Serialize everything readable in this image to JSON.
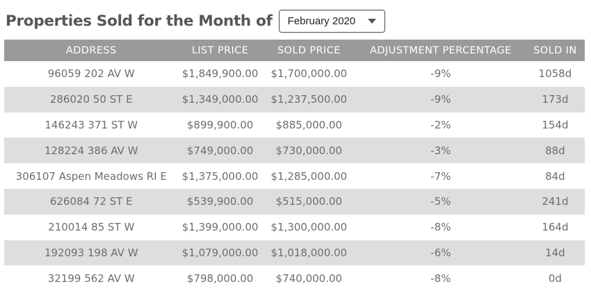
{
  "page": {
    "title": "Properties Sold for the Month of"
  },
  "month_selector": {
    "value": "February 2020",
    "icon": "chevron-down"
  },
  "table": {
    "columns": [
      "ADDRESS",
      "LIST PRICE",
      "SOLD PRICE",
      "ADJUSTMENT PERCENTAGE",
      "SOLD IN"
    ],
    "rows": [
      [
        "96059 202 AV W",
        "$1,849,900.00",
        "$1,700,000.00",
        "-9%",
        "1058d"
      ],
      [
        "286020 50 ST E",
        "$1,349,000.00",
        "$1,237,500.00",
        "-9%",
        "173d"
      ],
      [
        "146243 371 ST W",
        "$899,900.00",
        "$885,000.00",
        "-2%",
        "154d"
      ],
      [
        "128224 386 AV W",
        "$749,000.00",
        "$730,000.00",
        "-3%",
        "88d"
      ],
      [
        "306107 Aspen Meadows RI E",
        "$1,375,000.00",
        "$1,285,000.00",
        "-7%",
        "84d"
      ],
      [
        "626084 72 ST E",
        "$539,900.00",
        "$515,000.00",
        "-5%",
        "241d"
      ],
      [
        "210014 85 ST W",
        "$1,399,000.00",
        "$1,300,000.00",
        "-8%",
        "164d"
      ],
      [
        "192093 198 AV W",
        "$1,079,000.00",
        "$1,018,000.00",
        "-6%",
        "14d"
      ],
      [
        "32199 562 AV W",
        "$798,000.00",
        "$740,000.00",
        "-8%",
        "0d"
      ]
    ]
  },
  "colors": {
    "header_bg": "#9a9a9a",
    "header_text": "#ffffff",
    "row_alt_bg": "#dedede",
    "row_text": "#6d6d6d",
    "title_text": "#55565a",
    "select_border": "#4a4a4a"
  }
}
